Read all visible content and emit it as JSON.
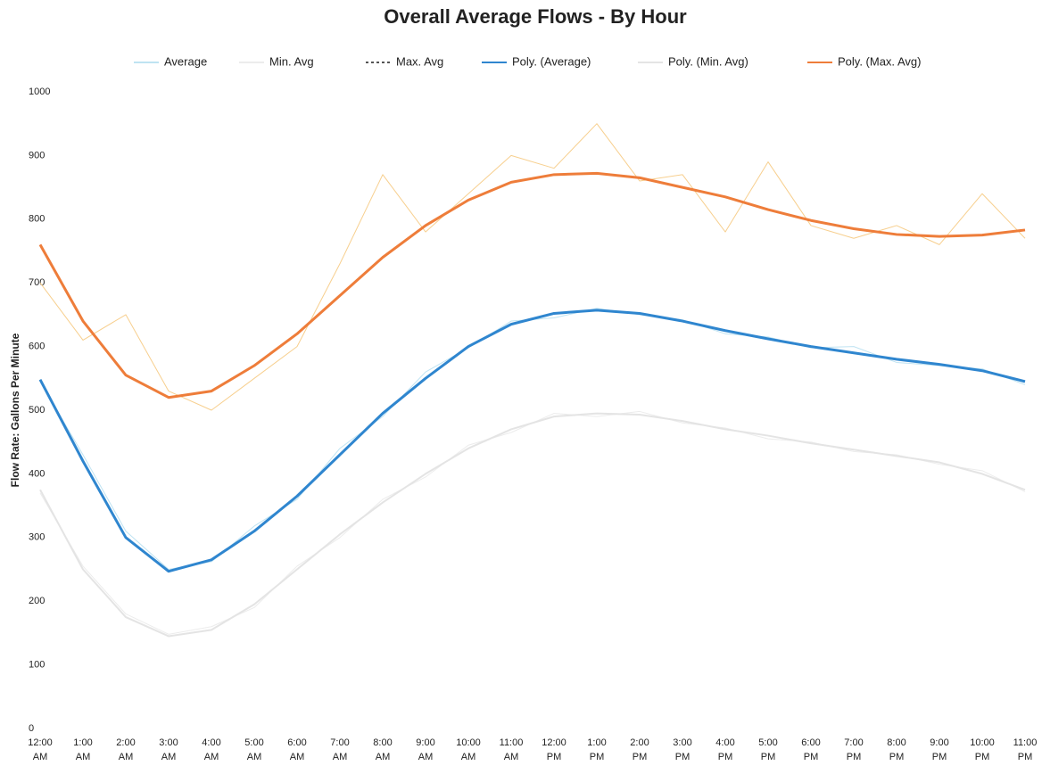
{
  "chart_data": {
    "type": "line",
    "title": "Overall Average Flows - By Hour",
    "y_label": "Flow Rate: Gallons Per Minute",
    "categories": [
      [
        "12:00",
        "AM"
      ],
      [
        "1:00",
        "AM"
      ],
      [
        "2:00",
        "AM"
      ],
      [
        "3:00",
        "AM"
      ],
      [
        "4:00",
        "AM"
      ],
      [
        "5:00",
        "AM"
      ],
      [
        "6:00",
        "AM"
      ],
      [
        "7:00",
        "AM"
      ],
      [
        "8:00",
        "AM"
      ],
      [
        "9:00",
        "AM"
      ],
      [
        "10:00",
        "AM"
      ],
      [
        "11:00",
        "AM"
      ],
      [
        "12:00",
        "PM"
      ],
      [
        "1:00",
        "PM"
      ],
      [
        "2:00",
        "PM"
      ],
      [
        "3:00",
        "PM"
      ],
      [
        "4:00",
        "PM"
      ],
      [
        "5:00",
        "PM"
      ],
      [
        "6:00",
        "PM"
      ],
      [
        "7:00",
        "PM"
      ],
      [
        "8:00",
        "PM"
      ],
      [
        "9:00",
        "PM"
      ],
      [
        "10:00",
        "PM"
      ],
      [
        "11:00",
        "PM"
      ]
    ],
    "ylim": [
      0,
      1000
    ],
    "yticks": [
      0,
      100,
      200,
      300,
      400,
      500,
      600,
      700,
      800,
      900,
      1000
    ],
    "grid": false,
    "series": [
      {
        "name": "Average",
        "color": "#bfe3f2",
        "width": 1,
        "values": [
          545,
          430,
          310,
          250,
          262,
          318,
          360,
          440,
          490,
          560,
          598,
          640,
          645,
          660,
          650,
          642,
          620,
          615,
          598,
          600,
          575,
          570,
          565,
          540
        ]
      },
      {
        "name": "Min. Avg",
        "color": "#ececec",
        "width": 1,
        "values": [
          370,
          255,
          180,
          148,
          160,
          190,
          255,
          300,
          360,
          395,
          445,
          465,
          495,
          490,
          498,
          480,
          472,
          455,
          450,
          435,
          430,
          415,
          405,
          372
        ]
      },
      {
        "name": "Max. Avg",
        "color": "#f7cf8e",
        "width": 1,
        "dash": true,
        "values": [
          700,
          610,
          650,
          530,
          500,
          550,
          600,
          730,
          870,
          780,
          840,
          900,
          880,
          950,
          860,
          870,
          780,
          890,
          790,
          770,
          790,
          760,
          840,
          770
        ]
      },
      {
        "name": "Poly. (Average)",
        "color": "#2f86cf",
        "width": 3,
        "values": [
          548,
          420,
          300,
          247,
          265,
          310,
          365,
          430,
          495,
          550,
          600,
          635,
          652,
          657,
          652,
          640,
          625,
          612,
          600,
          590,
          580,
          572,
          562,
          545
        ]
      },
      {
        "name": "Poly. (Min. Avg)",
        "color": "#e4e4e4",
        "width": 2,
        "values": [
          375,
          250,
          175,
          145,
          155,
          195,
          250,
          305,
          355,
          400,
          440,
          470,
          490,
          495,
          493,
          483,
          470,
          460,
          448,
          438,
          428,
          418,
          400,
          375
        ]
      },
      {
        "name": "Poly. (Max. Avg)",
        "color": "#ee7d3a",
        "width": 3,
        "values": [
          760,
          640,
          555,
          520,
          530,
          570,
          620,
          680,
          740,
          790,
          830,
          858,
          870,
          872,
          865,
          850,
          835,
          815,
          798,
          785,
          776,
          773,
          775,
          783
        ]
      }
    ]
  }
}
